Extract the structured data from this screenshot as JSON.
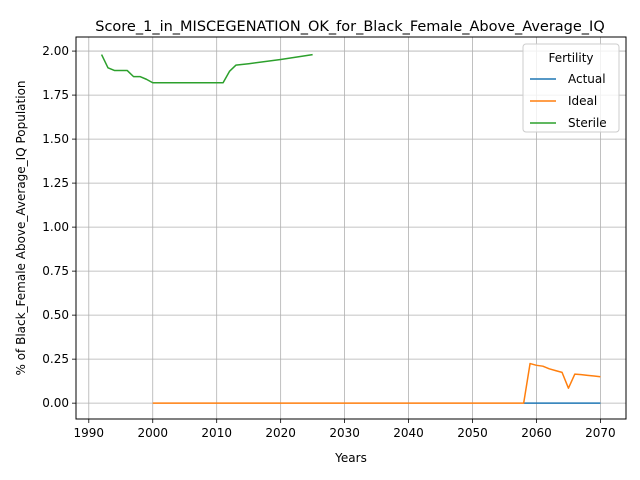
{
  "chart_data": {
    "type": "line",
    "title": "Score_1_in_MISCEGENATION_OK_for_Black_Female_Above_Average_IQ",
    "xlabel": "Years",
    "ylabel": "% of Black_Female Above_Average_IQ Population",
    "xlim": [
      1988,
      2074
    ],
    "ylim": [
      -0.09,
      2.08
    ],
    "xticks": [
      1990,
      2000,
      2010,
      2020,
      2030,
      2040,
      2050,
      2060,
      2070
    ],
    "xtick_labels": [
      "1990",
      "2000",
      "2010",
      "2020",
      "2030",
      "2040",
      "2050",
      "2060",
      "2070"
    ],
    "yticks": [
      0.0,
      0.25,
      0.5,
      0.75,
      1.0,
      1.25,
      1.5,
      1.75,
      2.0
    ],
    "ytick_labels": [
      "0.00",
      "0.25",
      "0.50",
      "0.75",
      "1.00",
      "1.25",
      "1.50",
      "1.75",
      "2.00"
    ],
    "grid": true,
    "legend": {
      "title": "Fertility",
      "position": "top-right"
    },
    "series": [
      {
        "name": "Actual",
        "color": "#1f77b4",
        "points": [
          [
            2058,
            0.0
          ],
          [
            2060,
            0.0
          ],
          [
            2062,
            0.0
          ],
          [
            2064,
            0.0
          ],
          [
            2066,
            0.0
          ],
          [
            2068,
            0.0
          ],
          [
            2070,
            0.0
          ]
        ]
      },
      {
        "name": "Ideal",
        "color": "#ff7f0e",
        "points": [
          [
            2000,
            0.0
          ],
          [
            2005,
            0.0
          ],
          [
            2010,
            0.0
          ],
          [
            2020,
            0.0
          ],
          [
            2030,
            0.0
          ],
          [
            2040,
            0.0
          ],
          [
            2050,
            0.0
          ],
          [
            2058,
            0.0
          ],
          [
            2059,
            0.225
          ],
          [
            2060,
            0.215
          ],
          [
            2061,
            0.21
          ],
          [
            2062,
            0.195
          ],
          [
            2063,
            0.185
          ],
          [
            2064,
            0.175
          ],
          [
            2065,
            0.085
          ],
          [
            2066,
            0.165
          ],
          [
            2067,
            0.162
          ],
          [
            2068,
            0.158
          ],
          [
            2069,
            0.154
          ],
          [
            2070,
            0.15
          ]
        ]
      },
      {
        "name": "Sterile",
        "color": "#2ca02c",
        "points": [
          [
            1992,
            1.98
          ],
          [
            1993,
            1.905
          ],
          [
            1994,
            1.89
          ],
          [
            1995,
            1.89
          ],
          [
            1996,
            1.89
          ],
          [
            1997,
            1.855
          ],
          [
            1998,
            1.855
          ],
          [
            1999,
            1.84
          ],
          [
            2000,
            1.82
          ],
          [
            2005,
            1.82
          ],
          [
            2010,
            1.82
          ],
          [
            2011,
            1.82
          ],
          [
            2012,
            1.885
          ],
          [
            2013,
            1.92
          ],
          [
            2015,
            1.928
          ],
          [
            2020,
            1.952
          ],
          [
            2025,
            1.98
          ]
        ]
      }
    ]
  }
}
